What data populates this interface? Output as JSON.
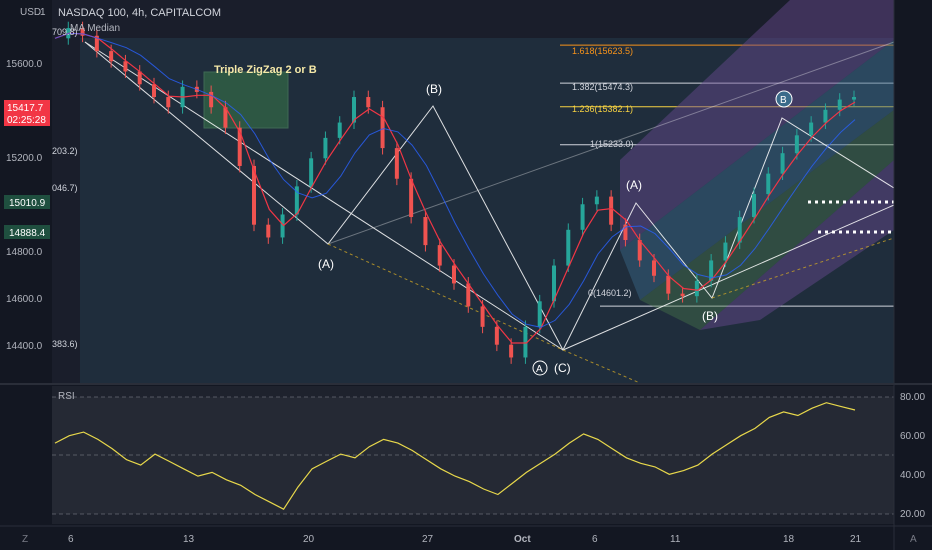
{
  "header": {
    "currency": "USD",
    "symbol_line": "NASDAQ 100, 4h, CAPITALCOM",
    "indicator_label": "MA Median"
  },
  "price_axis": {
    "ticks": [
      "15600.0",
      "15200.0",
      "14800.0",
      "14600.0",
      "14400.0"
    ],
    "top_tick_partial": "1",
    "current_price": "15417.7",
    "countdown": "02:25:28",
    "badges": [
      "15010.9",
      "14888.4"
    ],
    "colors": {
      "current": "#f23645",
      "badge": "#1f4f3f"
    }
  },
  "rsi_axis": {
    "label": "RSI",
    "ticks": [
      "80.00",
      "60.00",
      "40.00",
      "20.00"
    ]
  },
  "time_axis": {
    "labels": [
      "6",
      "13",
      "20",
      "27",
      "Oct",
      "6",
      "11",
      "18",
      "21"
    ]
  },
  "corner_buttons": {
    "left": "Z",
    "right": "A"
  },
  "annotations": {
    "pattern_label": "Triple ZigZag 2 or B",
    "waves": [
      "(A)",
      "(B)",
      "(C)",
      "(A)",
      "(B)"
    ],
    "circled": [
      "A",
      "B"
    ],
    "left_edge_levels": [
      "709.8)",
      "203.2)",
      "046.7)",
      "383.6)"
    ]
  },
  "fib_levels": [
    {
      "label": "1.618(15623.5)",
      "color": "#f7931a"
    },
    {
      "label": "1.382(15474.3)",
      "color": "#d1d4dc"
    },
    {
      "label": "1.236(15382.1)",
      "color": "#f5d142"
    },
    {
      "label": "1(15233.0)",
      "color": "#d1d4dc"
    },
    {
      "label": "0(14601.2)",
      "color": "#d1d4dc"
    }
  ],
  "chart_data": {
    "type": "line",
    "title": "NASDAQ 100, 4h, CAPITALCOM",
    "price_unit": "USD",
    "price_range": [
      14300,
      15800
    ],
    "rsi_range": [
      15,
      88
    ],
    "x": [
      "6",
      "13",
      "20",
      "27",
      "Oct",
      "6",
      "11",
      "18",
      "21"
    ],
    "price_path": [
      15650,
      15690,
      15660,
      15600,
      15560,
      15520,
      15470,
      15420,
      15380,
      15460,
      15440,
      15380,
      15300,
      15150,
      14920,
      14870,
      14960,
      15070,
      15180,
      15260,
      15320,
      15420,
      15380,
      15220,
      15100,
      14950,
      14840,
      14760,
      14690,
      14600,
      14520,
      14450,
      14400,
      14520,
      14620,
      14760,
      14900,
      15000,
      15030,
      14920,
      14860,
      14780,
      14720,
      14650,
      14640,
      14700,
      14780,
      14850,
      14950,
      15040,
      15120,
      15200,
      15270,
      15320,
      15370,
      15410,
      15420
    ],
    "rsi_values": [
      58,
      62,
      64,
      60,
      55,
      49,
      46,
      52,
      48,
      44,
      40,
      42,
      38,
      35,
      30,
      26,
      22,
      34,
      44,
      48,
      52,
      50,
      56,
      60,
      58,
      54,
      49,
      44,
      40,
      37,
      33,
      30,
      36,
      42,
      47,
      52,
      58,
      63,
      60,
      55,
      50,
      47,
      45,
      41,
      43,
      46,
      52,
      57,
      62,
      66,
      72,
      75,
      73,
      77,
      80,
      78,
      76
    ],
    "series": [
      {
        "name": "MA Median",
        "color": "#f23645"
      }
    ]
  }
}
